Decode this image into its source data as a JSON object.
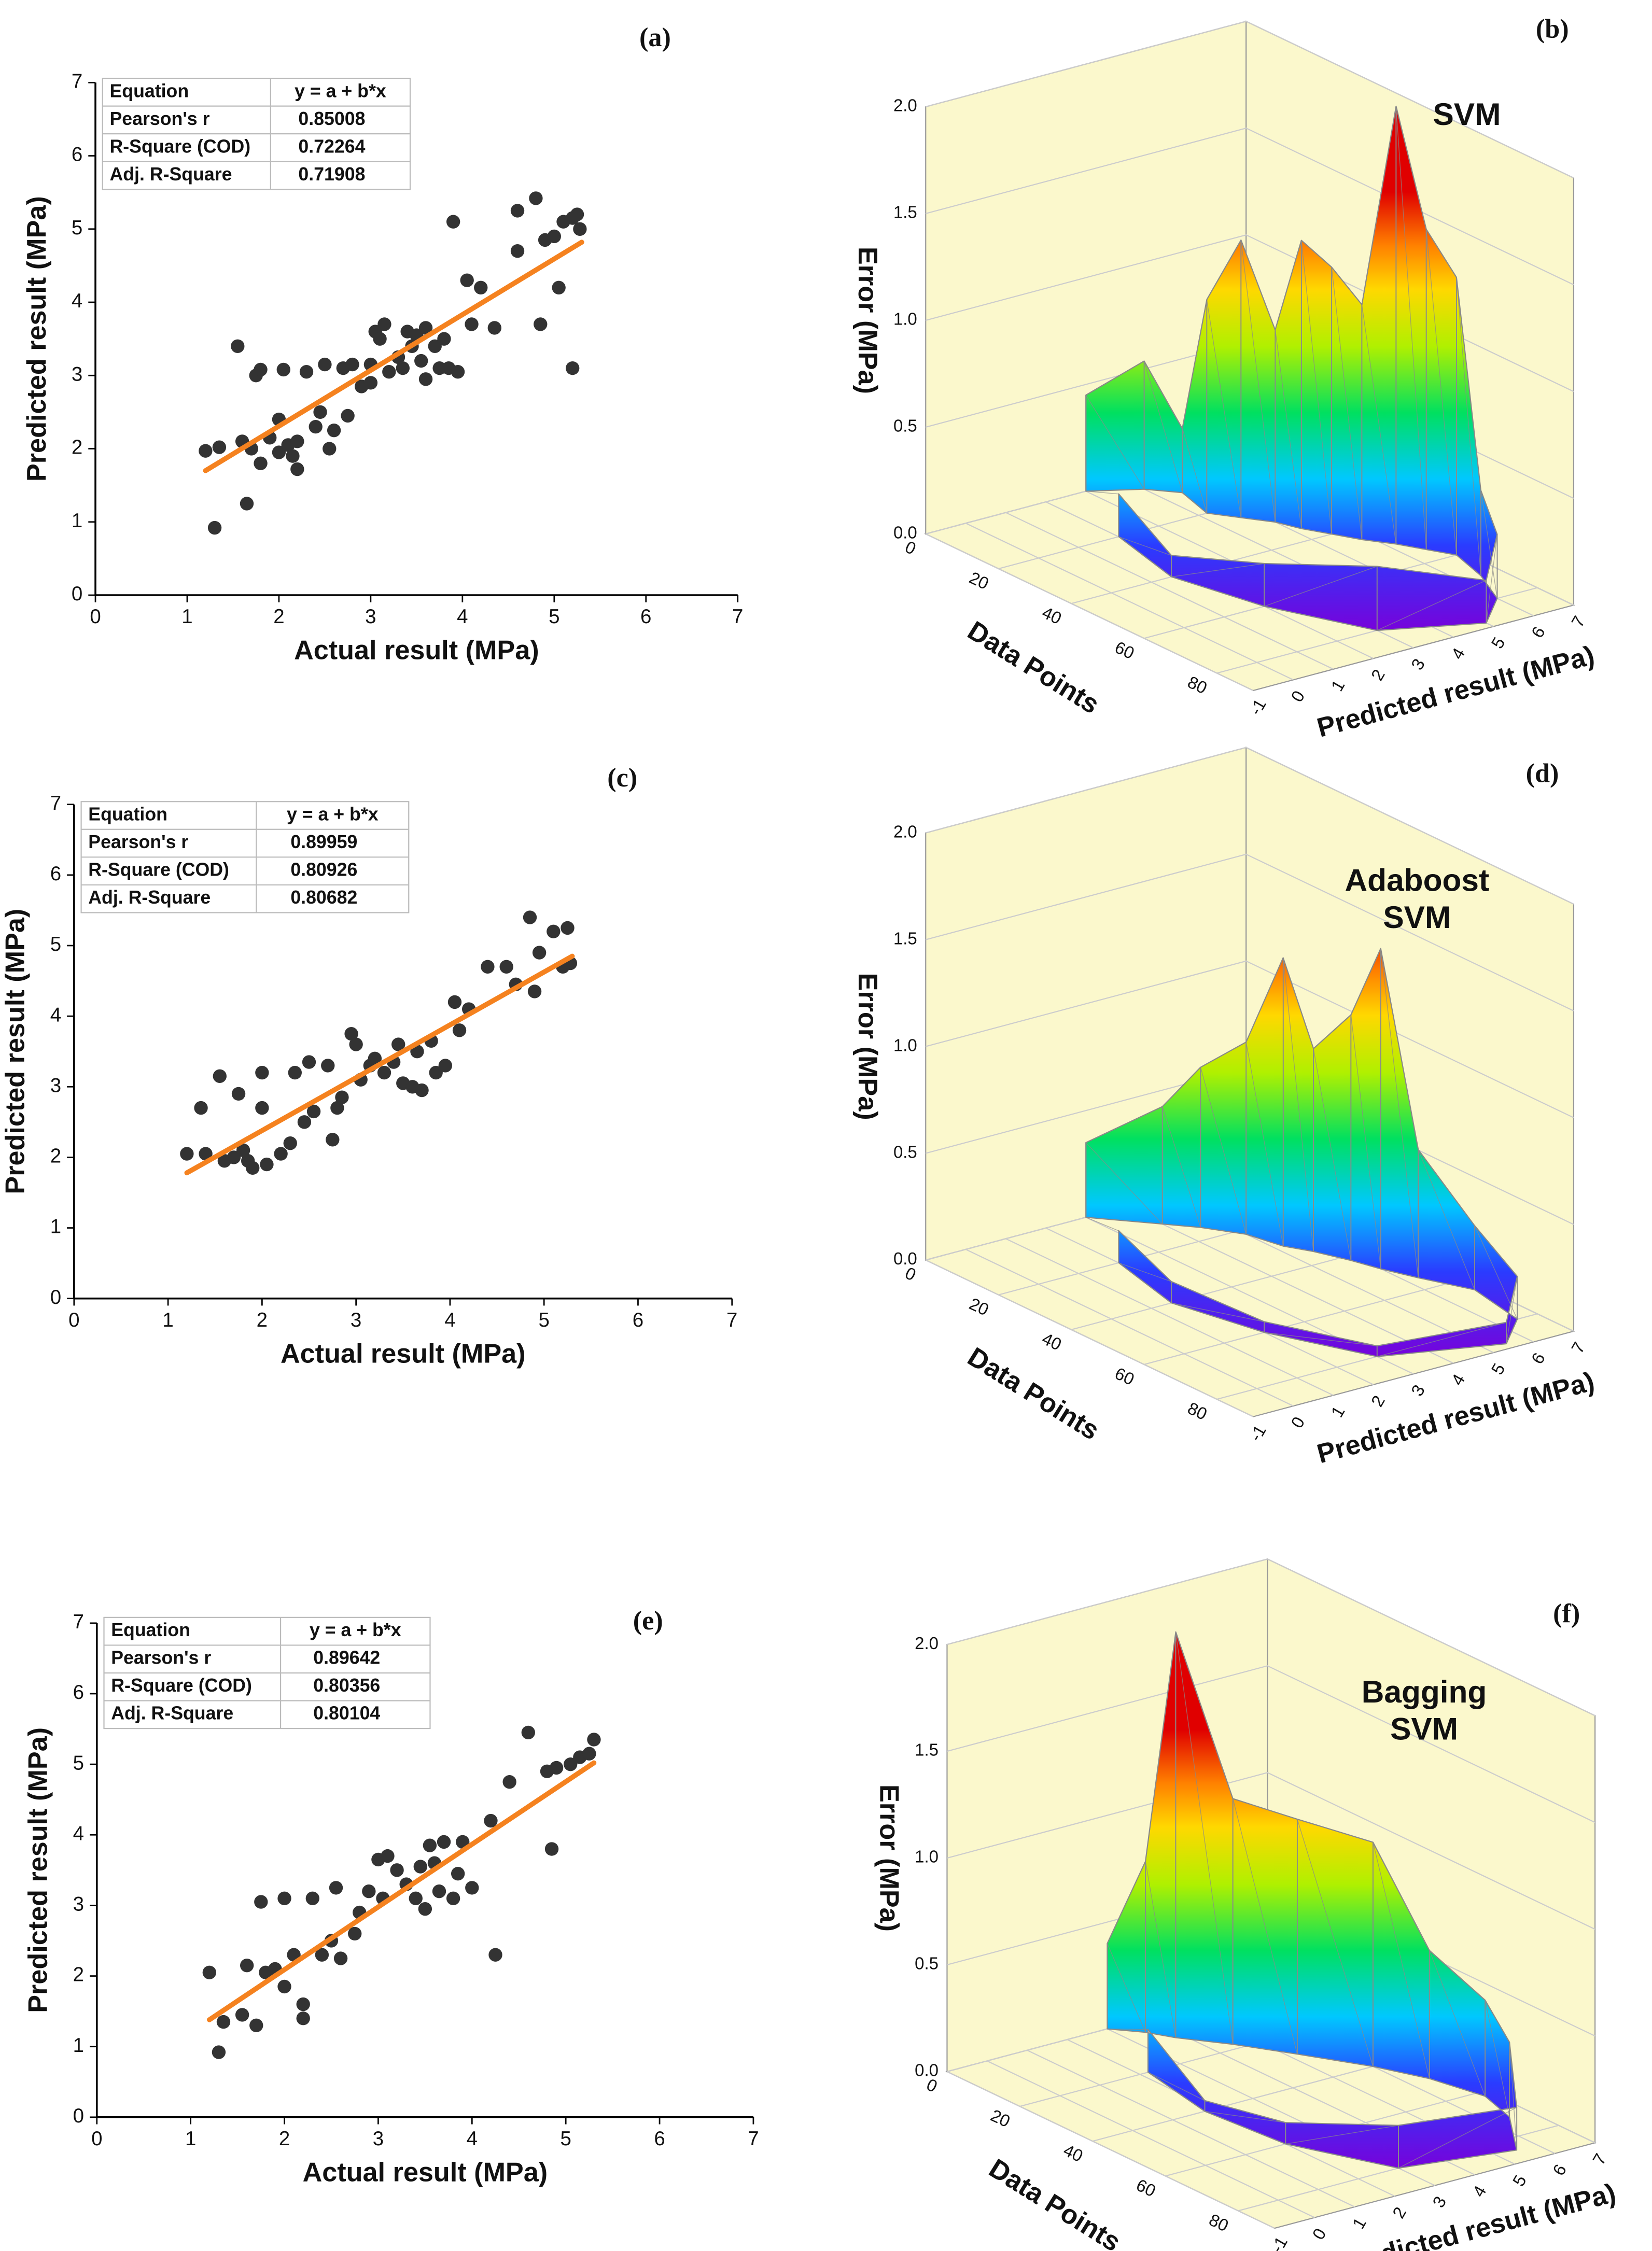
{
  "chart_data": [
    {
      "type": "scatter",
      "panel": "(a)",
      "x_label": "Actual result (MPa)",
      "y_label": "Predicted result (MPa)",
      "xlim": [
        0,
        7
      ],
      "ylim": [
        0,
        7
      ],
      "xticks": [
        0,
        1,
        2,
        3,
        4,
        5,
        6,
        7
      ],
      "yticks": [
        0,
        1,
        2,
        3,
        4,
        5,
        6,
        7
      ],
      "color": "#333333",
      "x": [
        1.2,
        1.3,
        1.35,
        1.55,
        1.6,
        1.65,
        1.7,
        1.75,
        1.8,
        1.8,
        1.9,
        2.0,
        2.0,
        2.05,
        2.1,
        2.15,
        2.2,
        2.2,
        2.3,
        2.4,
        2.45,
        2.5,
        2.55,
        2.6,
        2.7,
        2.75,
        2.8,
        2.9,
        3.0,
        3.0,
        3.05,
        3.1,
        3.15,
        3.2,
        3.3,
        3.35,
        3.4,
        3.45,
        3.5,
        3.55,
        3.6,
        3.6,
        3.7,
        3.75,
        3.8,
        3.85,
        3.9,
        3.95,
        4.05,
        4.1,
        4.2,
        4.35,
        4.6,
        4.6,
        4.8,
        4.85,
        4.9,
        5.0,
        5.05,
        5.1,
        5.2,
        5.2,
        5.25,
        5.28
      ],
      "y": [
        1.97,
        0.92,
        2.02,
        3.4,
        2.1,
        1.25,
        2.0,
        3.0,
        3.08,
        1.8,
        2.15,
        1.95,
        2.4,
        3.08,
        2.05,
        1.9,
        1.72,
        2.1,
        3.05,
        2.3,
        2.5,
        3.15,
        2.0,
        2.25,
        3.1,
        2.45,
        3.15,
        2.85,
        3.15,
        2.9,
        3.6,
        3.5,
        3.7,
        3.05,
        3.25,
        3.1,
        3.6,
        3.4,
        3.55,
        3.2,
        2.95,
        3.65,
        3.4,
        3.1,
        3.5,
        3.1,
        5.1,
        3.05,
        4.3,
        3.7,
        4.2,
        3.65,
        5.25,
        4.7,
        5.42,
        3.7,
        4.85,
        4.9,
        4.2,
        5.1,
        3.1,
        5.15,
        5.2,
        5.0
      ],
      "fit": {
        "x": [
          1.2,
          5.3
        ],
        "y": [
          1.7,
          4.82
        ],
        "color": "#f5821f"
      },
      "table": [
        [
          "Equation",
          "y = a + b*x"
        ],
        [
          "Pearson's r",
          "0.85008"
        ],
        [
          "R-Square (COD)",
          "0.72264"
        ],
        [
          "Adj. R-Square",
          "0.71908"
        ]
      ]
    },
    {
      "type": "surface3d",
      "panel": "(b)",
      "title": [
        "SVM"
      ],
      "z_label": "Error (MPa)",
      "d_label": "Data Points",
      "p_label": "Predicted result (MPa)",
      "zlim": [
        0,
        2
      ],
      "zticks": [
        {
          "value": 0,
          "label": "0.0"
        },
        {
          "value": 0.5,
          "label": "0.5"
        },
        {
          "value": 1,
          "label": "1.0"
        },
        {
          "value": 1.5,
          "label": "1.5"
        },
        {
          "value": 2,
          "label": "2.0"
        }
      ],
      "dlim": [
        0,
        90
      ],
      "dticks": [
        0,
        20,
        40,
        60,
        80
      ],
      "plim": [
        -1,
        7
      ],
      "pticks": [
        -1,
        0,
        1,
        2,
        3,
        4,
        5,
        6,
        7
      ],
      "data_points": [
        0,
        5,
        10,
        20,
        25,
        30,
        35,
        40,
        45,
        50,
        55,
        60,
        70,
        80,
        88,
        80,
        60,
        40,
        20
      ],
      "predicted": [
        3,
        4,
        4.5,
        4.2,
        4.6,
        5,
        5.2,
        5.5,
        5.8,
        6.2,
        6.5,
        6.8,
        6.5,
        6,
        5,
        3,
        2,
        1.5,
        2
      ],
      "error": [
        0.45,
        0.6,
        0.3,
        1.0,
        1.3,
        0.9,
        1.35,
        1.25,
        1.1,
        2.05,
        1.5,
        1.3,
        0.4,
        0.3,
        0.2,
        0.3,
        0.2,
        0.1,
        0.2
      ]
    },
    {
      "type": "scatter",
      "panel": "(c)",
      "x_label": "Actual result (MPa)",
      "y_label": "Predicted result (MPa)",
      "xlim": [
        0,
        7
      ],
      "ylim": [
        0,
        7
      ],
      "xticks": [
        0,
        1,
        2,
        3,
        4,
        5,
        6,
        7
      ],
      "yticks": [
        0,
        1,
        2,
        3,
        4,
        5,
        6,
        7
      ],
      "color": "#333333",
      "x": [
        1.2,
        1.35,
        1.4,
        1.55,
        1.6,
        1.7,
        1.75,
        1.8,
        1.85,
        1.9,
        2.0,
        2.0,
        2.05,
        2.2,
        2.3,
        2.35,
        2.45,
        2.5,
        2.55,
        2.7,
        2.75,
        2.8,
        2.85,
        2.95,
        3.0,
        3.05,
        3.15,
        3.2,
        3.3,
        3.4,
        3.45,
        3.5,
        3.6,
        3.65,
        3.7,
        3.8,
        3.85,
        3.95,
        4.05,
        4.1,
        4.2,
        4.4,
        4.6,
        4.7,
        4.85,
        4.9,
        4.95,
        5.1,
        5.2,
        5.25,
        5.28
      ],
      "y": [
        2.05,
        2.7,
        2.05,
        3.15,
        1.95,
        2.0,
        2.9,
        2.1,
        1.95,
        1.85,
        3.2,
        2.7,
        1.9,
        2.05,
        2.2,
        3.2,
        2.5,
        3.35,
        2.65,
        3.3,
        2.25,
        2.7,
        2.85,
        3.75,
        3.6,
        3.1,
        3.3,
        3.4,
        3.2,
        3.35,
        3.6,
        3.05,
        3.0,
        3.5,
        2.95,
        3.65,
        3.2,
        3.3,
        4.2,
        3.8,
        4.1,
        4.7,
        4.7,
        4.45,
        5.4,
        4.35,
        4.9,
        5.2,
        4.7,
        5.25,
        4.75
      ],
      "fit": {
        "x": [
          1.2,
          5.3
        ],
        "y": [
          1.78,
          4.85
        ],
        "color": "#f5821f"
      },
      "table": [
        [
          "Equation",
          "y = a + b*x"
        ],
        [
          "Pearson's r",
          "0.89959"
        ],
        [
          "R-Square (COD)",
          "0.80926"
        ],
        [
          "Adj. R-Square",
          "0.80682"
        ]
      ]
    },
    {
      "type": "surface3d",
      "panel": "(d)",
      "title": [
        "Adaboost",
        "SVM"
      ],
      "z_label": "Error (MPa)",
      "d_label": "Data Points",
      "p_label": "Predicted result (MPa)",
      "zlim": [
        0,
        2
      ],
      "zticks": [
        {
          "value": 0,
          "label": "0.0"
        },
        {
          "value": 0.5,
          "label": "0.5"
        },
        {
          "value": 1,
          "label": "1.0"
        },
        {
          "value": 1.5,
          "label": "1.5"
        },
        {
          "value": 2,
          "label": "2.0"
        }
      ],
      "dlim": [
        0,
        90
      ],
      "dticks": [
        0,
        20,
        40,
        60,
        80
      ],
      "plim": [
        -1,
        7
      ],
      "pticks": [
        -1,
        0,
        1,
        2,
        3,
        4,
        5,
        6,
        7
      ],
      "data_points": [
        0,
        10,
        15,
        22,
        30,
        35,
        42,
        48,
        55,
        65,
        80,
        88,
        80,
        60,
        40,
        20
      ],
      "predicted": [
        3,
        4,
        4.5,
        5,
        5.2,
        5.5,
        5.8,
        6,
        6.3,
        6.8,
        6.5,
        5.5,
        3,
        2,
        1.5,
        2
      ],
      "error": [
        0.35,
        0.55,
        0.75,
        0.9,
        1.35,
        0.95,
        1.15,
        1.5,
        0.6,
        0.3,
        0.2,
        0.1,
        0.05,
        0.05,
        0.1,
        0.15
      ]
    },
    {
      "type": "scatter",
      "panel": "(e)",
      "x_label": "Actual result (MPa)",
      "y_label": "Predicted result (MPa)",
      "xlim": [
        0,
        7
      ],
      "ylim": [
        0,
        7
      ],
      "xticks": [
        0,
        1,
        2,
        3,
        4,
        5,
        6,
        7
      ],
      "yticks": [
        0,
        1,
        2,
        3,
        4,
        5,
        6,
        7
      ],
      "color": "#333333",
      "x": [
        1.2,
        1.3,
        1.35,
        1.55,
        1.6,
        1.7,
        1.75,
        1.8,
        1.9,
        2.0,
        2.0,
        2.1,
        2.2,
        2.2,
        2.3,
        2.4,
        2.5,
        2.55,
        2.6,
        2.75,
        2.8,
        2.9,
        3.0,
        3.05,
        3.1,
        3.2,
        3.3,
        3.4,
        3.45,
        3.5,
        3.55,
        3.6,
        3.65,
        3.7,
        3.8,
        3.85,
        3.9,
        4.0,
        4.2,
        4.25,
        4.4,
        4.6,
        4.8,
        4.85,
        4.9,
        5.05,
        5.15,
        5.25,
        5.3
      ],
      "y": [
        2.05,
        0.92,
        1.35,
        1.45,
        2.15,
        1.3,
        3.05,
        2.05,
        2.1,
        1.85,
        3.1,
        2.3,
        1.6,
        1.4,
        3.1,
        2.3,
        2.5,
        3.25,
        2.25,
        2.6,
        2.9,
        3.2,
        3.65,
        3.1,
        3.7,
        3.5,
        3.3,
        3.1,
        3.55,
        2.95,
        3.85,
        3.6,
        3.2,
        3.9,
        3.1,
        3.45,
        3.9,
        3.25,
        4.2,
        2.3,
        4.75,
        5.45,
        4.9,
        3.8,
        4.95,
        5.0,
        5.1,
        5.15,
        5.35
      ],
      "fit": {
        "x": [
          1.2,
          5.3
        ],
        "y": [
          1.38,
          5.02
        ],
        "color": "#f5821f"
      },
      "table": [
        [
          "Equation",
          "y = a + b*x"
        ],
        [
          "Pearson's r",
          "0.89642"
        ],
        [
          "R-Square (COD)",
          "0.80356"
        ],
        [
          "Adj. R-Square",
          "0.80104"
        ]
      ]
    },
    {
      "type": "surface3d",
      "panel": "(f)",
      "title": [
        "Bagging",
        "SVM"
      ],
      "z_label": "Error (MPa)",
      "d_label": "Data Points",
      "p_label": "Predicted result (MPa)",
      "zlim": [
        0,
        2
      ],
      "zticks": [
        {
          "value": 0,
          "label": "0.0"
        },
        {
          "value": 0.5,
          "label": "0.5"
        },
        {
          "value": 1,
          "label": "1.0"
        },
        {
          "value": 1.5,
          "label": "1.5"
        },
        {
          "value": 2,
          "label": "2.0"
        }
      ],
      "dlim": [
        0,
        90
      ],
      "dticks": [
        0,
        20,
        40,
        60,
        80
      ],
      "plim": [
        -1,
        7
      ],
      "pticks": [
        -1,
        0,
        1,
        2,
        3,
        4,
        5,
        6,
        7
      ],
      "data_points": [
        0,
        5,
        10,
        18,
        28,
        40,
        50,
        62,
        72,
        85,
        80,
        60,
        40,
        20
      ],
      "predicted": [
        3,
        3.5,
        3.8,
        4.5,
        5.2,
        6,
        6.5,
        6.8,
        6.5,
        5.5,
        3,
        2,
        1.8,
        2.2
      ],
      "error": [
        0.4,
        0.8,
        1.9,
        1.15,
        1.1,
        1.05,
        0.6,
        0.45,
        0.35,
        0.2,
        0.2,
        0.1,
        0.05,
        0.2
      ]
    }
  ]
}
